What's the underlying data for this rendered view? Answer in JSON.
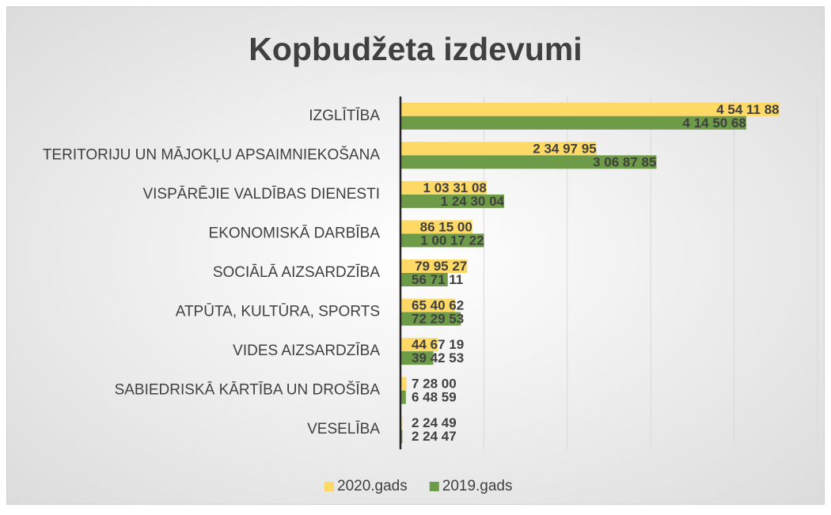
{
  "chart_data": {
    "type": "bar",
    "orientation": "horizontal",
    "title": "Kopbudžeta izdevumi",
    "categories": [
      "IZGLĪTĪBA",
      "TERITORIJU UN MĀJOKĻU APSAIMNIEKOŠANA",
      "VISPĀRĒJIE VALDĪBAS DIENESTI",
      "EKONOMISKĀ DARBĪBA",
      "SOCIĀLĀ AIZSARDZĪBA",
      "ATPŪTA, KULTŪRA, SPORTS",
      "VIDES AIZSARDZĪBA",
      "SABIEDRISKĀ KĀRTĪBA UN DROŠĪBA",
      "VESELĪBA"
    ],
    "series": [
      {
        "name": "2020.gads",
        "color": "#ffd966",
        "values": [
          4541188,
          2349795,
          1033108,
          861500,
          799527,
          654062,
          446719,
          72800,
          22449
        ],
        "value_labels": [
          "4 54 11 88",
          "2 34 97 95",
          "1 03 31 08",
          "86 15 00",
          "79 95 27",
          "65 40 62",
          "44 67 19",
          "7 28 00",
          "2 24 49"
        ]
      },
      {
        "name": "2019.gads",
        "color": "#6e9b48",
        "values": [
          4145068,
          3068785,
          1243004,
          1001722,
          567111,
          722953,
          394253,
          64859,
          22447
        ],
        "value_labels": [
          "4 14 50 68",
          "3 06 87 85",
          "1 24 30 04",
          "1 00 17 22",
          "56 71 11",
          "72 29 53",
          "39 42 53",
          "6 48 59",
          "2 24 47"
        ]
      }
    ],
    "xlim": [
      0,
      5000000
    ],
    "xticks": [
      0,
      1000000,
      2000000,
      3000000,
      4000000,
      5000000
    ],
    "grid": true,
    "legend": "bottom"
  }
}
